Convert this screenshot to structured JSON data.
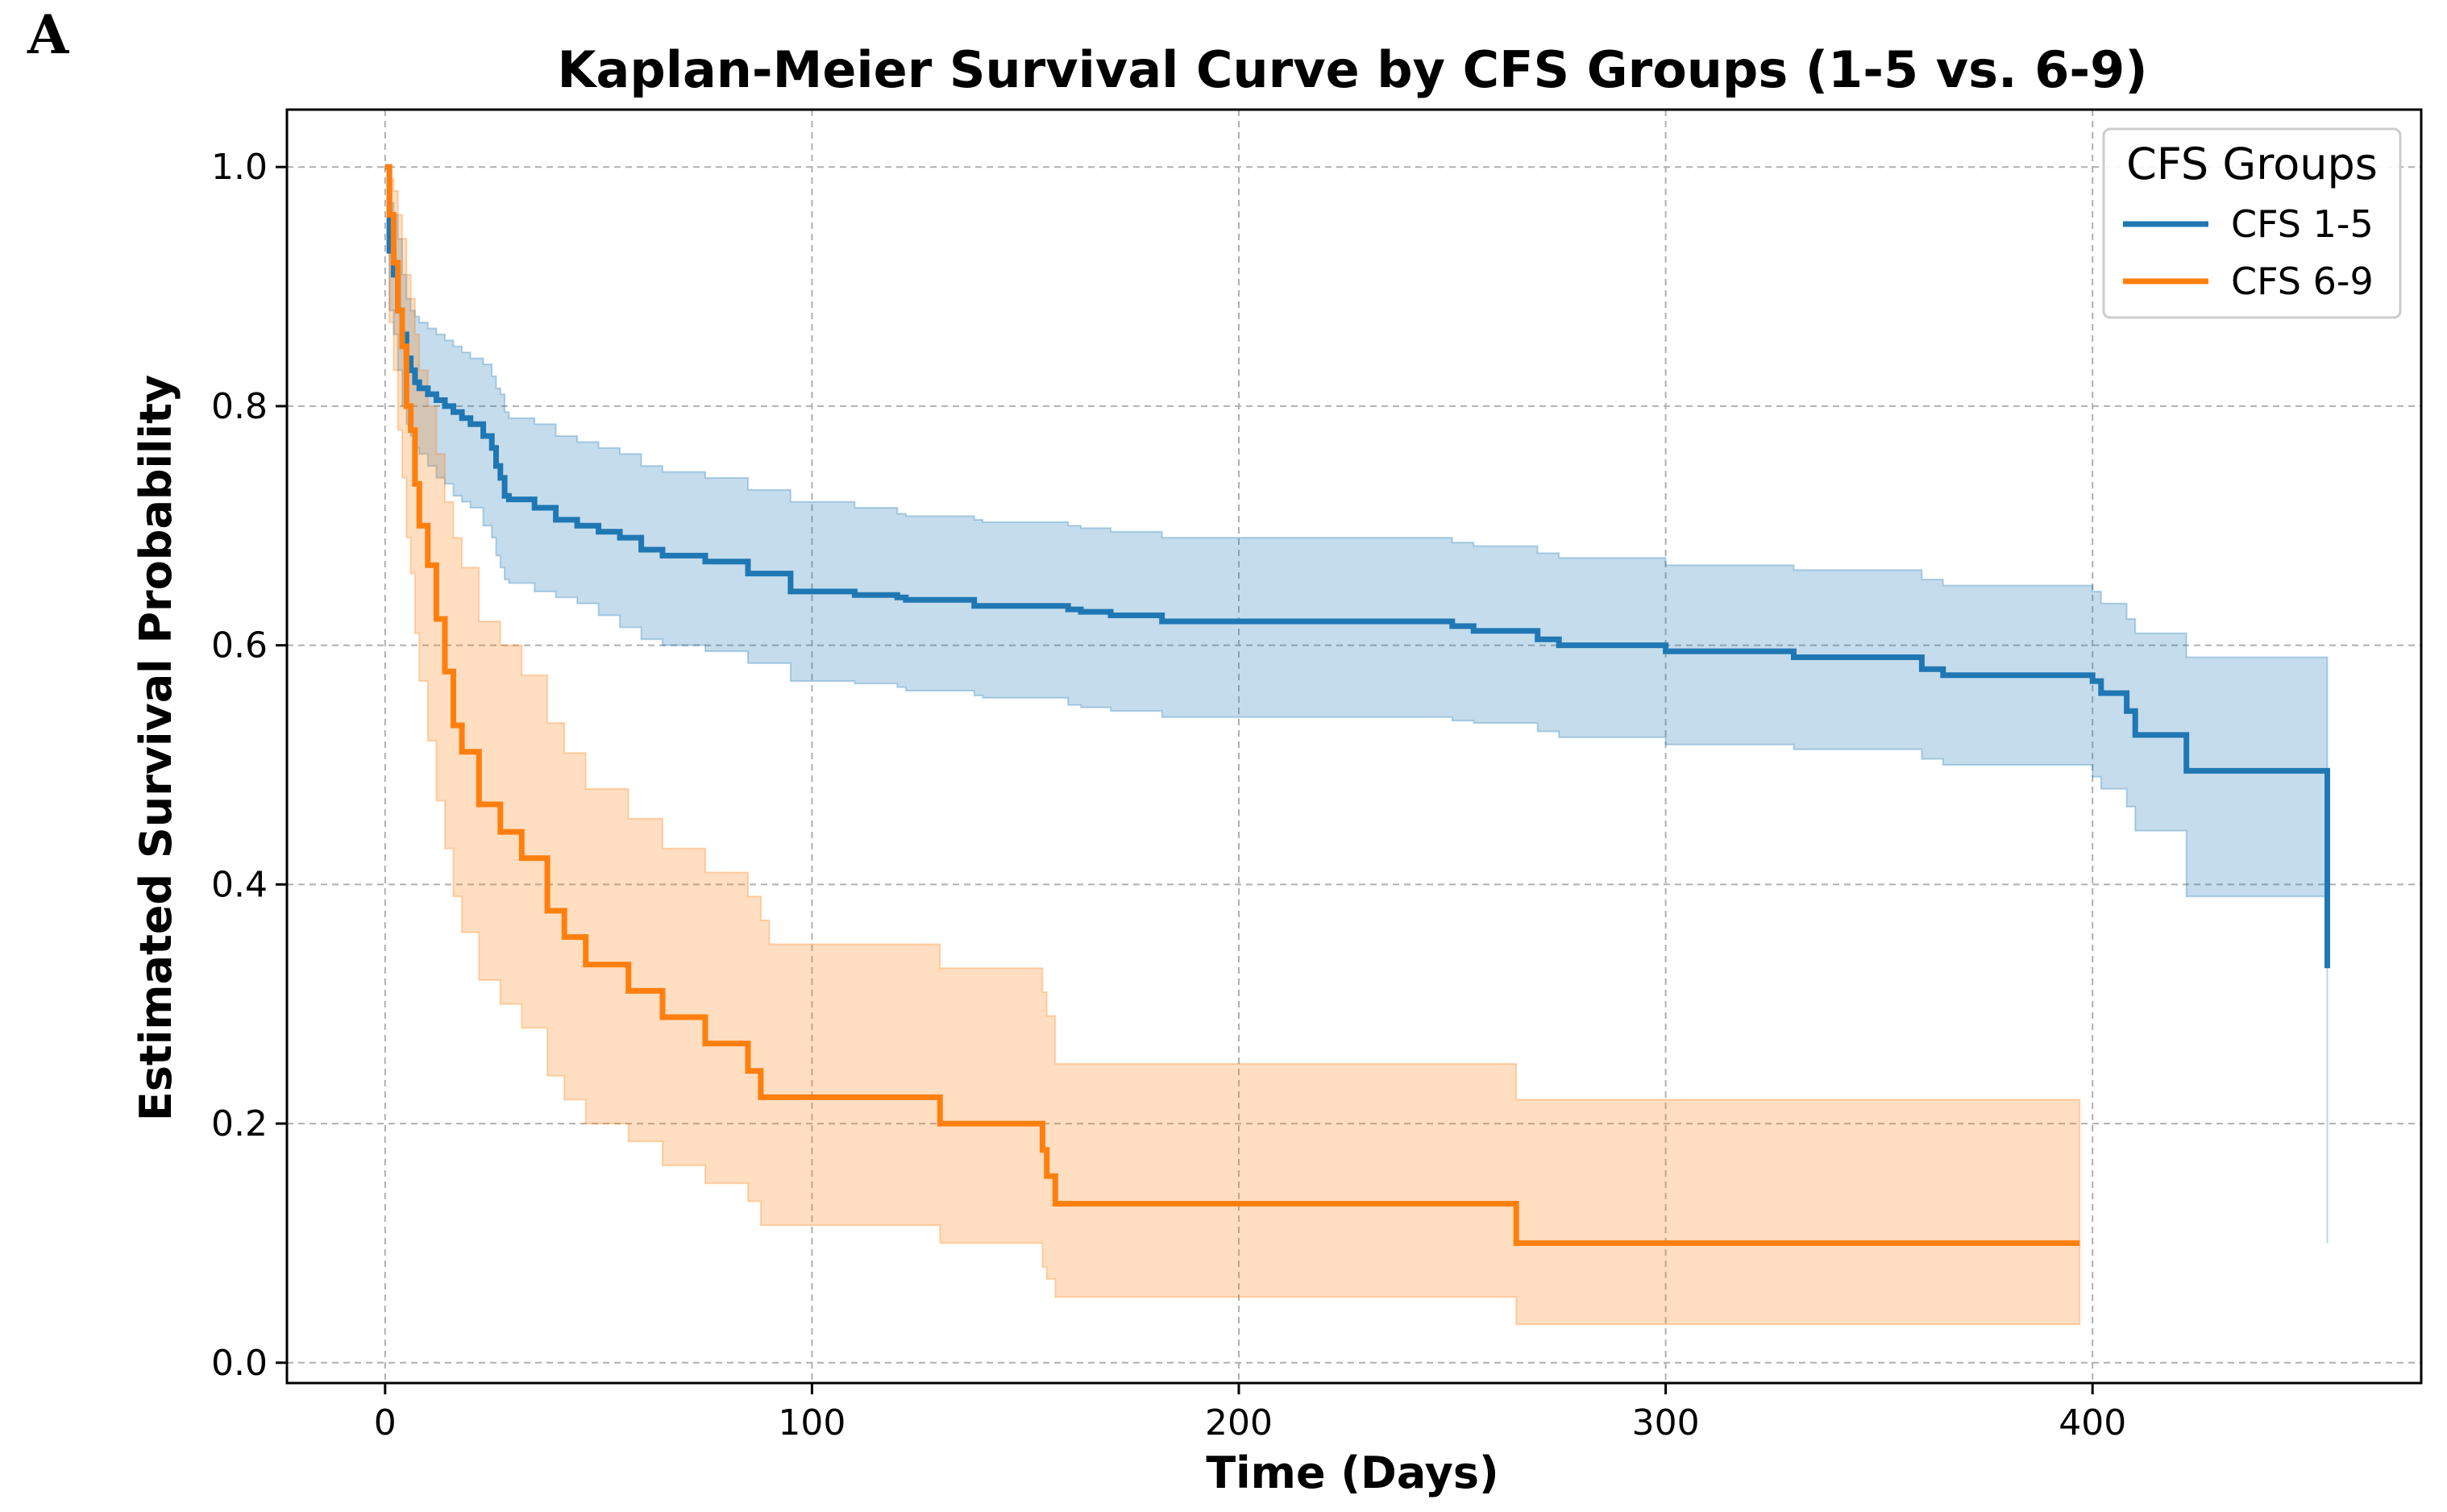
{
  "panel_label": "A",
  "chart_data": {
    "type": "line",
    "subtype": "kaplan-meier-step",
    "title": "Kaplan-Meier Survival Curve by CFS Groups (1-5 vs. 6-9)",
    "xlabel": "Time (Days)",
    "ylabel": "Estimated Survival Probability",
    "xlim": [
      -23,
      477
    ],
    "ylim": [
      -0.017,
      1.048
    ],
    "xticks": [
      0,
      100,
      200,
      300,
      400
    ],
    "xtick_labels": [
      "0",
      "100",
      "200",
      "300",
      "400"
    ],
    "yticks": [
      0.0,
      0.2,
      0.4,
      0.6,
      0.8,
      1.0
    ],
    "ytick_labels": [
      "0.0",
      "0.2",
      "0.4",
      "0.6",
      "0.8",
      "1.0"
    ],
    "grid": true,
    "legend": {
      "title": "CFS Groups",
      "position": "top-right"
    },
    "series": [
      {
        "name": "CFS 1-5",
        "color": "#1f77b4",
        "fill_color": "#1f77b4",
        "x": [
          0,
          1,
          2,
          3,
          4,
          5,
          6,
          7,
          8,
          10,
          12,
          14,
          16,
          18,
          20,
          23,
          25,
          26,
          27,
          28,
          29,
          35,
          40,
          45,
          50,
          55,
          60,
          65,
          75,
          85,
          95,
          110,
          120,
          122,
          138,
          140,
          160,
          163,
          170,
          182,
          250,
          255,
          270,
          275,
          300,
          330,
          360,
          365,
          400,
          402,
          408,
          410,
          422,
          455
        ],
        "y": [
          1.0,
          0.93,
          0.91,
          0.88,
          0.86,
          0.84,
          0.83,
          0.82,
          0.815,
          0.81,
          0.805,
          0.8,
          0.795,
          0.79,
          0.785,
          0.775,
          0.765,
          0.75,
          0.74,
          0.725,
          0.722,
          0.715,
          0.705,
          0.7,
          0.695,
          0.69,
          0.68,
          0.675,
          0.67,
          0.66,
          0.645,
          0.642,
          0.64,
          0.638,
          0.633,
          0.633,
          0.63,
          0.628,
          0.625,
          0.62,
          0.616,
          0.612,
          0.605,
          0.6,
          0.595,
          0.59,
          0.58,
          0.575,
          0.57,
          0.56,
          0.545,
          0.525,
          0.495,
          0.33
        ],
        "ci_lower": [
          1.0,
          0.88,
          0.86,
          0.83,
          0.8,
          0.785,
          0.775,
          0.765,
          0.76,
          0.75,
          0.74,
          0.735,
          0.725,
          0.72,
          0.715,
          0.7,
          0.69,
          0.675,
          0.665,
          0.655,
          0.652,
          0.645,
          0.64,
          0.635,
          0.625,
          0.615,
          0.605,
          0.6,
          0.595,
          0.585,
          0.57,
          0.568,
          0.565,
          0.562,
          0.558,
          0.556,
          0.55,
          0.548,
          0.545,
          0.54,
          0.537,
          0.535,
          0.528,
          0.523,
          0.517,
          0.513,
          0.505,
          0.5,
          0.49,
          0.48,
          0.465,
          0.445,
          0.39,
          0.1
        ],
        "ci_upper": [
          1.0,
          0.97,
          0.96,
          0.94,
          0.91,
          0.89,
          0.88,
          0.875,
          0.87,
          0.865,
          0.86,
          0.855,
          0.85,
          0.845,
          0.84,
          0.835,
          0.825,
          0.815,
          0.81,
          0.795,
          0.79,
          0.785,
          0.775,
          0.77,
          0.765,
          0.76,
          0.75,
          0.745,
          0.74,
          0.73,
          0.72,
          0.715,
          0.71,
          0.708,
          0.705,
          0.703,
          0.7,
          0.698,
          0.695,
          0.69,
          0.686,
          0.683,
          0.677,
          0.673,
          0.667,
          0.663,
          0.655,
          0.65,
          0.645,
          0.635,
          0.622,
          0.61,
          0.59,
          0.59
        ]
      },
      {
        "name": "CFS 6-9",
        "color": "#ff7f0e",
        "fill_color": "#ff7f0e",
        "x": [
          0,
          1,
          2,
          3,
          4,
          5,
          6,
          7,
          8,
          10,
          12,
          14,
          16,
          18,
          22,
          27,
          32,
          38,
          42,
          47,
          57,
          65,
          75,
          85,
          88,
          90,
          130,
          154,
          155,
          157,
          265,
          397
        ],
        "y": [
          1.0,
          0.96,
          0.92,
          0.88,
          0.85,
          0.8,
          0.78,
          0.735,
          0.7,
          0.667,
          0.622,
          0.578,
          0.533,
          0.511,
          0.467,
          0.444,
          0.422,
          0.378,
          0.356,
          0.333,
          0.311,
          0.289,
          0.267,
          0.244,
          0.222,
          0.222,
          0.2,
          0.178,
          0.156,
          0.133,
          0.1,
          0.1
        ],
        "ci_lower": [
          1.0,
          0.87,
          0.83,
          0.78,
          0.74,
          0.69,
          0.66,
          0.61,
          0.57,
          0.52,
          0.47,
          0.43,
          0.39,
          0.36,
          0.32,
          0.3,
          0.28,
          0.24,
          0.22,
          0.2,
          0.185,
          0.165,
          0.15,
          0.135,
          0.115,
          0.115,
          0.1,
          0.08,
          0.07,
          0.055,
          0.032,
          0.032
        ],
        "ci_upper": [
          1.0,
          0.99,
          0.98,
          0.96,
          0.94,
          0.91,
          0.89,
          0.86,
          0.83,
          0.8,
          0.76,
          0.72,
          0.69,
          0.665,
          0.62,
          0.6,
          0.575,
          0.535,
          0.51,
          0.48,
          0.455,
          0.43,
          0.41,
          0.39,
          0.37,
          0.35,
          0.33,
          0.31,
          0.29,
          0.25,
          0.22,
          0.22
        ]
      }
    ]
  }
}
